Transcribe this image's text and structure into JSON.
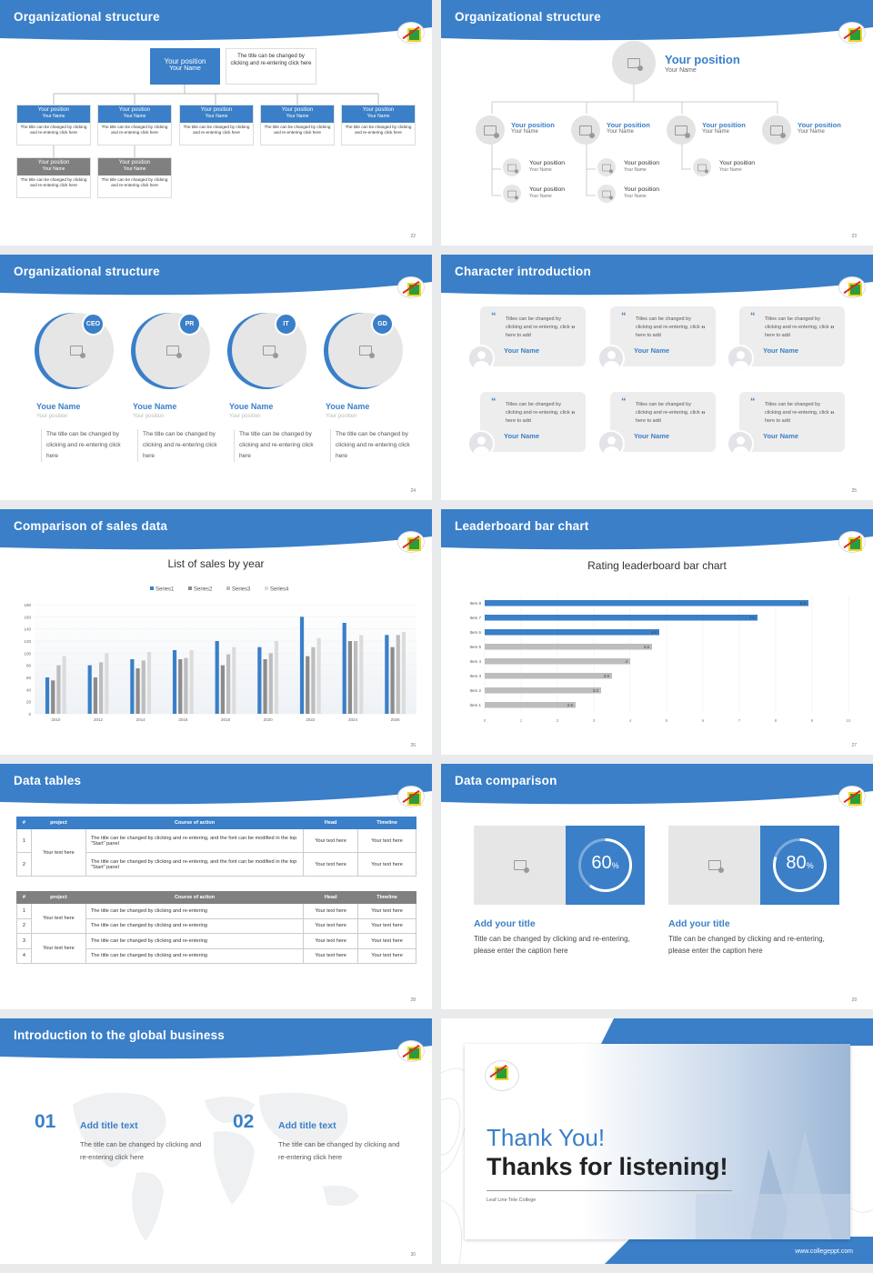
{
  "slides": [
    {
      "title": "Organizational structure",
      "num": "22"
    },
    {
      "title": "Organizational structure",
      "num": "23"
    },
    {
      "title": "Organizational structure",
      "num": "24"
    },
    {
      "title": "Character introduction",
      "num": "25"
    },
    {
      "title": "Comparison of sales data",
      "num": "26"
    },
    {
      "title": "Leaderboard bar chart",
      "num": "27"
    },
    {
      "title": "Data tables",
      "num": "28"
    },
    {
      "title": "Data comparison",
      "num": "29"
    },
    {
      "title": "Introduction to the global business",
      "num": "30"
    }
  ],
  "org1": {
    "top": {
      "pos": "Your position",
      "name": "Your Name",
      "desc": "The title can be changed by clicking and re-entering click here"
    },
    "pos": "Your position",
    "name": "Your Name",
    "desc": "The title can be changed by clicking and re-entering click here"
  },
  "org2": {
    "pos": "Your position",
    "name": "Your Name"
  },
  "org3": {
    "badges": [
      "CEO",
      "PR",
      "IT",
      "GD"
    ],
    "name": "Youe Name",
    "pos": "Your position",
    "desc": "The title can be changed by clicking and re-entering click here"
  },
  "chars": {
    "quote": "Titles can be changed by clicking and re-entering, click here to add",
    "name": "Your Name"
  },
  "colors": {
    "accent": "#3a7fc8",
    "gray": "#808080"
  },
  "chart_data": [
    {
      "type": "bar",
      "title": "List of sales by year",
      "categories": [
        "2010",
        "2012",
        "2014",
        "2016",
        "2018",
        "2020",
        "2022",
        "2024",
        "2026"
      ],
      "series": [
        {
          "name": "Series1",
          "color": "#3a7fc8",
          "values": [
            60,
            80,
            90,
            105,
            120,
            110,
            160,
            150,
            130
          ]
        },
        {
          "name": "Series2",
          "color": "#8c8c8c",
          "values": [
            55,
            60,
            75,
            90,
            80,
            90,
            95,
            120,
            110
          ]
        },
        {
          "name": "Series3",
          "color": "#bdbdbd",
          "values": [
            80,
            85,
            88,
            92,
            98,
            100,
            110,
            120,
            130
          ]
        },
        {
          "name": "Series4",
          "color": "#dcdcdc",
          "values": [
            95,
            100,
            102,
            105,
            110,
            120,
            125,
            130,
            135
          ]
        }
      ],
      "ylim": [
        0,
        180
      ],
      "yticks": [
        0,
        20,
        40,
        60,
        80,
        100,
        120,
        140,
        160,
        180
      ]
    },
    {
      "type": "bar",
      "orientation": "horizontal",
      "title": "Rating leaderboard bar chart",
      "categories": [
        "Item 1",
        "Item 2",
        "Item 3",
        "Item 4",
        "Item 5",
        "Item 6",
        "Item 7",
        "Item 8"
      ],
      "values": [
        2.5,
        3.2,
        3.5,
        4,
        4.6,
        4.8,
        7.5,
        8.9
      ],
      "colors": [
        "#bdbdbd",
        "#bdbdbd",
        "#bdbdbd",
        "#bdbdbd",
        "#bdbdbd",
        "#3a7fc8",
        "#3a7fc8",
        "#3a7fc8"
      ],
      "xlim": [
        0,
        10
      ],
      "xticks": [
        0,
        1,
        2,
        3,
        4,
        5,
        6,
        7,
        8,
        9,
        10
      ]
    }
  ],
  "table1": {
    "headers": [
      "#",
      "project",
      "Course of action",
      "Head",
      "Timeline"
    ],
    "rows": [
      [
        "1",
        "Your text here",
        "The title can be changed by clicking and re-entering, and the font can be modified in the top \"Start\" panel",
        "Your text here",
        "Your text here"
      ],
      [
        "2",
        "",
        "The title can be changed by clicking and re-entering, and the font can be modified in the top \"Start\" panel",
        "Your text here",
        "Your text here"
      ]
    ]
  },
  "table2": {
    "headers": [
      "#",
      "project",
      "Course of action",
      "Head",
      "Timeline"
    ],
    "rows": [
      [
        "1",
        "Your text here",
        "The title can be changed by clicking and re-entering",
        "Your text here",
        "Your text here"
      ],
      [
        "2",
        "",
        "The title can be changed by clicking and re-entering",
        "Your text here",
        "Your text here"
      ],
      [
        "3",
        "Your text here",
        "The title can be changed by clicking and re-entering",
        "Your text here",
        "Your text here"
      ],
      [
        "4",
        "",
        "The title can be changed by clicking and re-entering",
        "Your text here",
        "Your text here"
      ]
    ]
  },
  "datacmp": [
    {
      "pct": "60",
      "unit": "%",
      "progress": 0.6,
      "title": "Add your title",
      "desc": "Title can be changed by clicking and re-entering, please enter the caption here"
    },
    {
      "pct": "80",
      "unit": "%",
      "progress": 0.8,
      "title": "Add your title",
      "desc": "Title can be changed by clicking and re-entering, please enter the caption here"
    }
  ],
  "global": [
    {
      "num": "01",
      "title": "Add title text",
      "desc": "The title can be changed by clicking and re-entering click here"
    },
    {
      "num": "02",
      "title": "Add title text",
      "desc": "The title can be changed by clicking and re-entering click here"
    }
  ],
  "end": {
    "thank": "Thank You!",
    "thanks": "Thanks for listening!",
    "college": "Leaf Line Tele College",
    "site": "www.collegeppt.com"
  }
}
